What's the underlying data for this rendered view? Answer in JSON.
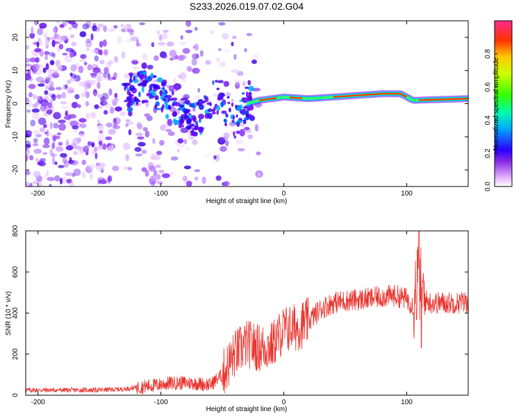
{
  "title": "S233.2026.019.07.02.G04",
  "chart_data": [
    {
      "type": "heatmap",
      "xlabel": "Height of straight line (km)",
      "ylabel": "Frequency (Hz)",
      "xlim": [
        -210,
        150
      ],
      "ylim": [
        -25,
        25
      ],
      "xticks": [
        -200,
        -100,
        0,
        100
      ],
      "yticks": [
        -20,
        -10,
        0,
        10,
        20
      ],
      "colorbar": {
        "label": "Normalized spectral amplitude",
        "range": [
          0,
          1
        ],
        "ticks": [
          0.0,
          0.2,
          0.4,
          0.6,
          0.8
        ]
      },
      "ridge": [
        {
          "x": -125,
          "y": 4
        },
        {
          "x": -110,
          "y": 5
        },
        {
          "x": -95,
          "y": 1
        },
        {
          "x": -85,
          "y": -3
        },
        {
          "x": -70,
          "y": -5
        },
        {
          "x": -55,
          "y": 3
        },
        {
          "x": -40,
          "y": -6
        },
        {
          "x": -30,
          "y": 0
        },
        {
          "x": -20,
          "y": 1
        },
        {
          "x": 0,
          "y": 2
        },
        {
          "x": 20,
          "y": 1.5
        },
        {
          "x": 40,
          "y": 2
        },
        {
          "x": 60,
          "y": 2.5
        },
        {
          "x": 80,
          "y": 3
        },
        {
          "x": 95,
          "y": 3
        },
        {
          "x": 105,
          "y": 1
        },
        {
          "x": 150,
          "y": 1.5
        }
      ]
    },
    {
      "type": "line",
      "xlabel": "Height of straight line (km)",
      "ylabel": "SNR (10 * v/v)",
      "xlim": [
        -210,
        150
      ],
      "ylim": [
        0,
        800
      ],
      "xticks": [
        -200,
        -100,
        0,
        100
      ],
      "yticks": [
        0,
        200,
        400,
        600,
        800
      ],
      "series": [
        {
          "name": "SNR",
          "color": "#e8322c",
          "x": [
            -210,
            -180,
            -150,
            -130,
            -110,
            -90,
            -75,
            -60,
            -50,
            -40,
            -30,
            -20,
            -10,
            0,
            10,
            20,
            30,
            40,
            50,
            60,
            70,
            80,
            90,
            100,
            105,
            110,
            112,
            115,
            120,
            130,
            140,
            150
          ],
          "y": [
            25,
            25,
            25,
            30,
            45,
            60,
            60,
            50,
            100,
            200,
            250,
            230,
            240,
            320,
            330,
            360,
            420,
            450,
            460,
            465,
            470,
            480,
            485,
            470,
            440,
            600,
            480,
            460,
            450,
            450,
            450,
            455
          ]
        }
      ]
    }
  ]
}
